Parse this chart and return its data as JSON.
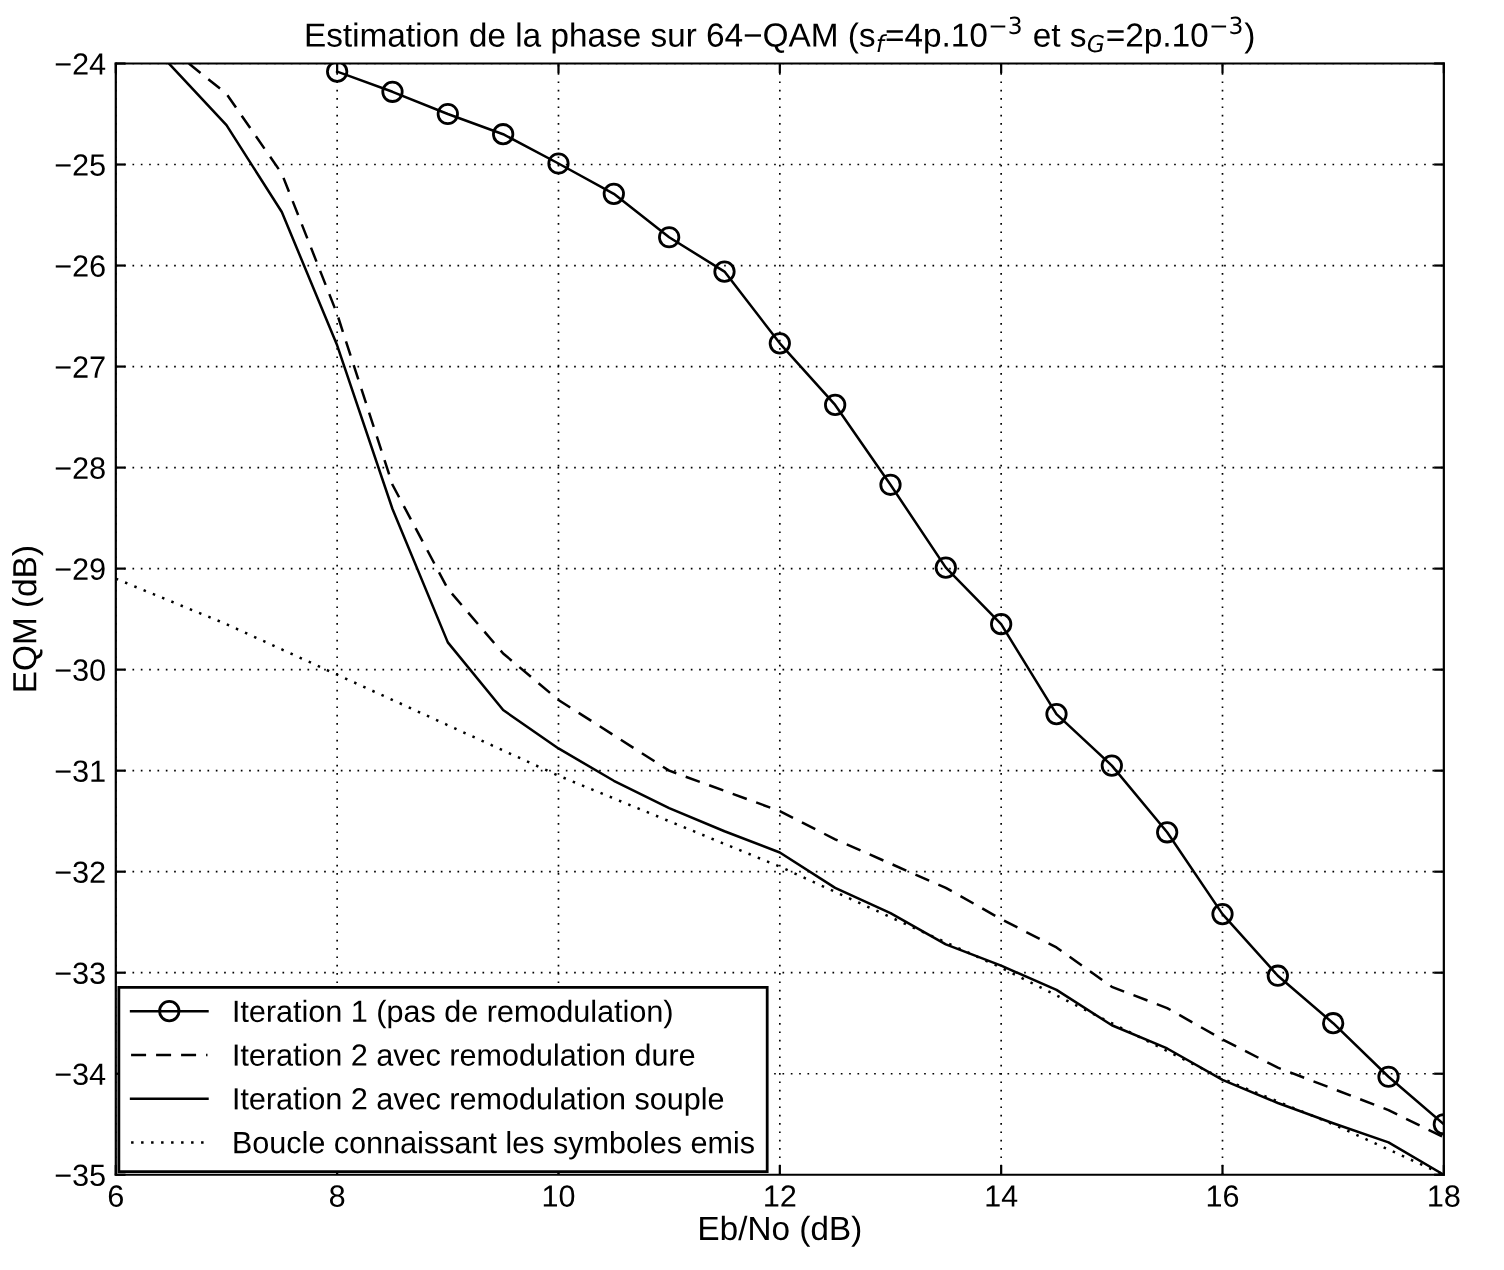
{
  "chart_data": {
    "type": "line",
    "title": "Estimation de la phase sur 64−QAM (s$_{f}$=4p.10$^{−3}$ et s$_{G}$=2p.10$^{−3}$)",
    "xlabel": "Eb/No (dB)",
    "ylabel": "EQM (dB)",
    "xlim": [
      6,
      18
    ],
    "ylim": [
      -35,
      -24
    ],
    "xticks": [
      6,
      8,
      10,
      12,
      14,
      16,
      18
    ],
    "yticks": [
      -35,
      -34,
      -33,
      -32,
      -31,
      -30,
      -29,
      -28,
      -27,
      -26,
      -25,
      -24
    ],
    "grid": true,
    "legend": "bottom left",
    "series": [
      {
        "name": "Iteration 1 (pas de remodulation)",
        "color": "#000000",
        "marker": "circle",
        "line_style": "solid",
        "x": [
          8,
          8.5,
          9,
          9.5,
          10,
          10.5,
          11,
          11.5,
          12,
          12.5,
          13,
          13.5,
          14,
          14.5,
          15,
          15.5,
          16,
          16.5,
          17,
          17.5,
          18
        ],
        "values": [
          -24.08,
          -24.28,
          -24.5,
          -24.7,
          -24.99,
          -25.29,
          -25.72,
          -26.06,
          -26.77,
          -27.38,
          -28.17,
          -28.99,
          -29.55,
          -30.44,
          -30.95,
          -31.61,
          -32.42,
          -33.03,
          -33.5,
          -34.03,
          -34.5
        ]
      },
      {
        "name": "Iteration 2 avec remodulation dure",
        "color": "#000000",
        "marker": "none",
        "line_style": "dashed",
        "x": [
          6.66,
          7,
          7.5,
          8,
          8.5,
          9,
          9.5,
          10,
          10.5,
          11,
          11.5,
          12,
          12.5,
          13,
          13.5,
          14,
          14.5,
          15,
          15.5,
          16,
          16.5,
          17,
          17.5,
          18
        ],
        "values": [
          -24.0,
          -24.3,
          -25.09,
          -26.48,
          -28.17,
          -29.2,
          -29.84,
          -30.3,
          -30.65,
          -31.0,
          -31.2,
          -31.4,
          -31.68,
          -31.92,
          -32.16,
          -32.47,
          -32.75,
          -33.14,
          -33.35,
          -33.66,
          -33.94,
          -34.15,
          -34.36,
          -34.63
        ]
      },
      {
        "name": "Iteration 2 avec remodulation souple",
        "color": "#000000",
        "marker": "none",
        "line_style": "solid",
        "x": [
          6.48,
          7,
          7.5,
          8,
          8.5,
          9,
          9.5,
          10,
          10.5,
          11,
          11.5,
          12,
          12.5,
          13,
          13.5,
          14,
          14.5,
          15,
          15.5,
          16,
          16.5,
          17,
          17.5,
          18
        ],
        "values": [
          -24.0,
          -24.61,
          -25.47,
          -26.79,
          -28.41,
          -29.73,
          -30.4,
          -30.78,
          -31.1,
          -31.37,
          -31.6,
          -31.81,
          -32.16,
          -32.41,
          -32.72,
          -32.93,
          -33.17,
          -33.52,
          -33.75,
          -34.06,
          -34.29,
          -34.49,
          -34.68,
          -35.0
        ]
      },
      {
        "name": "Boucle connaissant les symboles emis",
        "color": "#000000",
        "marker": "none",
        "line_style": "dotted",
        "x": [
          6,
          7,
          8,
          9,
          10,
          11,
          12,
          13,
          14,
          15,
          16,
          17,
          18
        ],
        "values": [
          -29.1,
          -29.55,
          -30.05,
          -30.55,
          -31.05,
          -31.5,
          -31.95,
          -32.45,
          -32.95,
          -33.5,
          -34.05,
          -34.5,
          -35.0
        ]
      }
    ]
  }
}
